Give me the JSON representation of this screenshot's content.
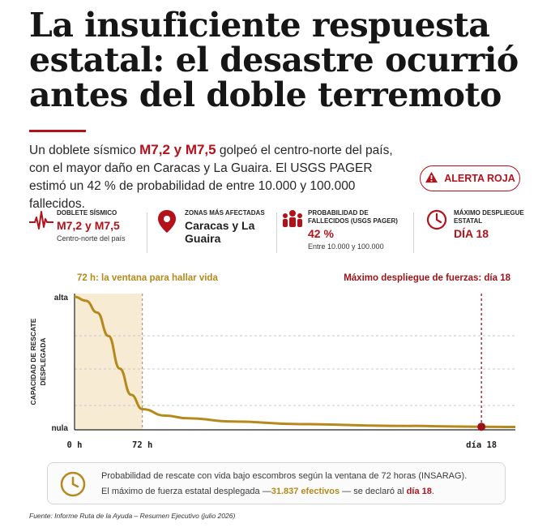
{
  "header": {
    "title": "La insuficiente respuesta estatal: el desastre ocurrió antes del doble terremoto"
  },
  "intro": {
    "part1": "Un doblete sísmico ",
    "highlight": "M7,2 y M7,5",
    "part2": " golpeó el centro-norte del país, con el mayor daño en Caracas y La Guaira. El USGS PAGER estimó un 42 % de probabilidad de entre 10.000 y 100.000 fallecidos."
  },
  "alert": {
    "label": "ALERTA ROJA",
    "icon": "warning-icon",
    "color": "#b3121b"
  },
  "stats": [
    {
      "icon": "seismograph-icon",
      "label": "DOBLETE SÍSMICO",
      "value": "M7,2 y M7,5",
      "sub": "Centro-norte del país"
    },
    {
      "icon": "map-pin-icon",
      "label": "ZONAS MÁS AFECTADAS",
      "value": "Caracas y La Guaira",
      "sub": ""
    },
    {
      "icon": "people-icon",
      "label": "PROBABILIDAD DE FALLECIDOS (USGS PAGER)",
      "value": "42 %",
      "sub": "Entre 10.000 y 100.000"
    },
    {
      "icon": "clock-icon",
      "label": "MÁXIMO DESPLIEGUE ESTATAL",
      "value": "DÍA 18",
      "sub": ""
    }
  ],
  "chart_data": {
    "type": "area",
    "ylabel": "CAPACIDAD DE RESCATE DESPLEGADA",
    "y_ticks": [
      "alta",
      "nula"
    ],
    "x_ticks": [
      {
        "label": "0 h",
        "hours": 0
      },
      {
        "label": "72 h",
        "hours": 72
      },
      {
        "label": "día 18",
        "hours": 432
      }
    ],
    "xlim": [
      0,
      468
    ],
    "ylim": [
      0,
      1
    ],
    "series": [
      {
        "x": [
          0,
          12,
          24,
          36,
          48,
          60,
          72,
          96,
          120,
          168,
          240,
          336,
          432,
          468
        ],
        "y": [
          1.0,
          0.97,
          0.88,
          0.7,
          0.45,
          0.25,
          0.14,
          0.09,
          0.07,
          0.045,
          0.025,
          0.012,
          0.005,
          0.003
        ]
      }
    ],
    "annotations": [
      {
        "text": "72 h: la ventana para hallar vida",
        "x_from": 0,
        "x_to": 72
      },
      {
        "text": "Máximo despliegue de fuerzas: día 18",
        "x": 432
      }
    ],
    "grid": true,
    "colors": {
      "line": "#b5891c",
      "window_fill": "#f7ecd3",
      "marker": "#9c1218"
    }
  },
  "info": {
    "icon": "clock-icon",
    "line1": "Probabilidad de rescate con vida bajo escombros según la ventana de 72 horas (INSARAG).",
    "line2_a": "El máximo de fuerza estatal desplegada —",
    "line2_value": "31.837 efectivos",
    "line2_b": " — se declaró al ",
    "line2_day": "día 18",
    "line2_end": "."
  },
  "source": "Fuente: Informe Ruta de la Ayuda – Resumen Ejecutivo (julio 2026)",
  "colors": {
    "accent": "#b3121b",
    "gold": "#b5891c"
  }
}
